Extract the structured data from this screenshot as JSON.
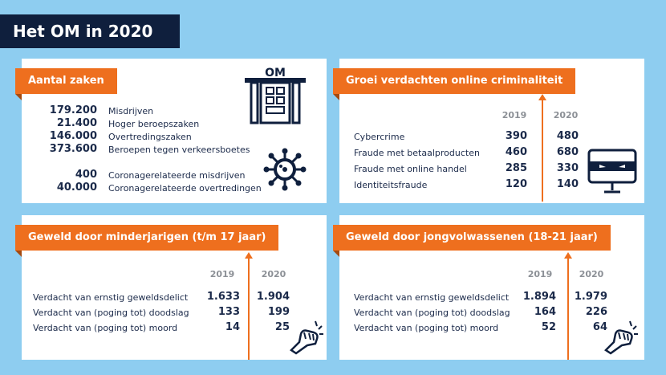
{
  "title": "Het OM in 2020",
  "cases": {
    "heading": "Aantal zaken",
    "rows": [
      {
        "value": "179.200",
        "label": "Misdrijven"
      },
      {
        "value": "21.400",
        "label": "Hoger beroepszaken"
      },
      {
        "value": "146.000",
        "label": "Overtredingszaken"
      },
      {
        "value": "373.600",
        "label": "Beroepen tegen verkeersboetes"
      }
    ],
    "corona_rows": [
      {
        "value": "400",
        "label": "Coronagerelateerde misdrijven"
      },
      {
        "value": "40.000",
        "label": "Coronagerelateerde overtredingen"
      }
    ],
    "building_text": "OM"
  },
  "online": {
    "heading": "Groei verdachten online criminaliteit",
    "years": [
      "2019",
      "2020"
    ],
    "rows": [
      {
        "label": "Cybercrime",
        "v2019": "390",
        "v2020": "480"
      },
      {
        "label": "Fraude met betaalproducten",
        "v2019": "460",
        "v2020": "680"
      },
      {
        "label": "Fraude met online handel",
        "v2019": "285",
        "v2020": "330"
      },
      {
        "label": "Identiteitsfraude",
        "v2019": "120",
        "v2020": "140"
      }
    ]
  },
  "minors": {
    "heading": "Geweld door minderjarigen (t/m 17 jaar)",
    "years": [
      "2019",
      "2020"
    ],
    "rows": [
      {
        "label": "Verdacht van ernstig geweldsdelict",
        "v2019": "1.633",
        "v2020": "1.904"
      },
      {
        "label": "Verdacht van (poging tot) doodslag",
        "v2019": "133",
        "v2020": "199"
      },
      {
        "label": "Verdacht van (poging tot) moord",
        "v2019": "14",
        "v2020": "25"
      }
    ]
  },
  "young_adults": {
    "heading": "Geweld door jongvolwassenen (18-21 jaar)",
    "years": [
      "2019",
      "2020"
    ],
    "rows": [
      {
        "label": "Verdacht van ernstig geweldsdelict",
        "v2019": "1.894",
        "v2020": "1.979"
      },
      {
        "label": "Verdacht van (poging tot) doodslag",
        "v2019": "164",
        "v2020": "226"
      },
      {
        "label": "Verdacht van (poging tot) moord",
        "v2019": "52",
        "v2020": "64"
      }
    ]
  }
}
